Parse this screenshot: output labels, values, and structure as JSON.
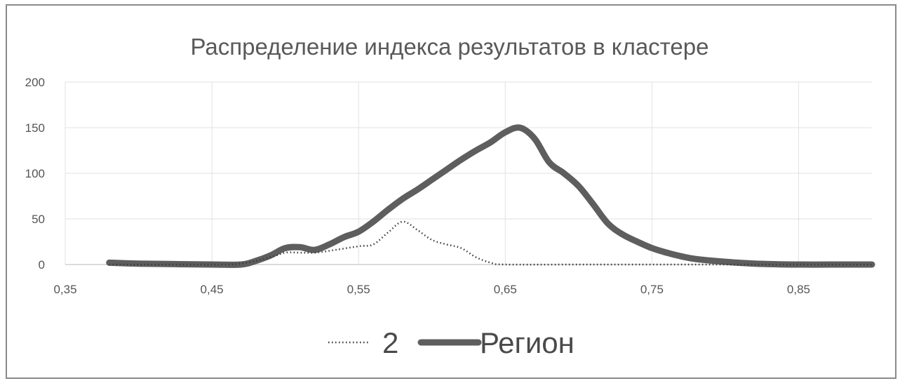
{
  "chart_data": {
    "type": "line",
    "title": "Распределение индекса результатов в кластере",
    "xlabel": "",
    "ylabel": "",
    "xlim": [
      0.35,
      0.9
    ],
    "ylim": [
      0,
      200
    ],
    "x_ticks": [
      "0,35",
      "0,45",
      "0,55",
      "0,65",
      "0,75",
      "0,85"
    ],
    "y_ticks": [
      "0",
      "50",
      "100",
      "150",
      "200"
    ],
    "grid": true,
    "legend_position": "bottom",
    "series": [
      {
        "name": "2",
        "style": "dotted",
        "color": "#3a3a3a",
        "x": [
          0.38,
          0.45,
          0.47,
          0.49,
          0.5,
          0.51,
          0.52,
          0.53,
          0.55,
          0.56,
          0.57,
          0.58,
          0.59,
          0.6,
          0.61,
          0.62,
          0.63,
          0.64,
          0.65,
          0.7,
          0.75,
          0.8,
          0.85,
          0.9
        ],
        "values": [
          0,
          0,
          1,
          8,
          13,
          13,
          13,
          15,
          20,
          22,
          35,
          47,
          38,
          27,
          22,
          18,
          8,
          2,
          0,
          0,
          0,
          0,
          0,
          0
        ]
      },
      {
        "name": "Регион",
        "style": "solid",
        "color": "#5e5e5e",
        "x": [
          0.38,
          0.4,
          0.45,
          0.47,
          0.48,
          0.49,
          0.5,
          0.51,
          0.52,
          0.53,
          0.54,
          0.55,
          0.56,
          0.57,
          0.58,
          0.59,
          0.6,
          0.61,
          0.62,
          0.63,
          0.64,
          0.65,
          0.66,
          0.67,
          0.68,
          0.69,
          0.7,
          0.71,
          0.72,
          0.73,
          0.74,
          0.75,
          0.76,
          0.77,
          0.78,
          0.8,
          0.82,
          0.85,
          0.88,
          0.9
        ],
        "values": [
          2,
          1,
          0,
          0,
          4,
          10,
          18,
          19,
          16,
          22,
          30,
          36,
          47,
          60,
          72,
          82,
          93,
          104,
          115,
          125,
          134,
          145,
          150,
          138,
          112,
          100,
          86,
          66,
          45,
          33,
          25,
          18,
          13,
          9,
          6,
          3,
          1,
          0,
          0,
          0
        ]
      }
    ]
  }
}
